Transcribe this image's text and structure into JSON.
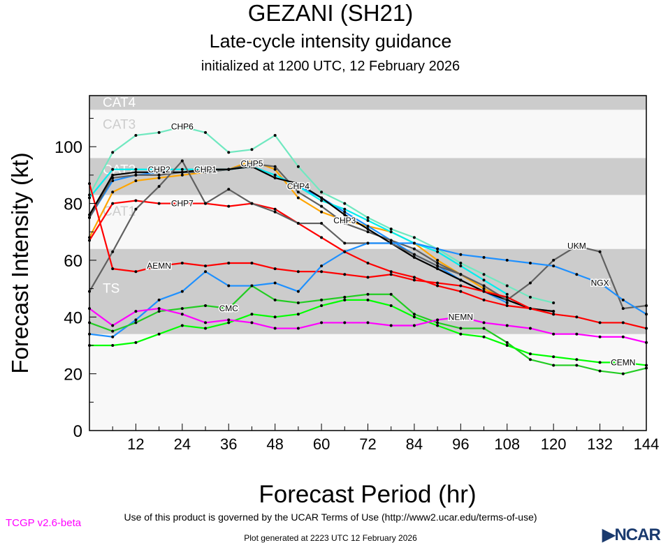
{
  "header": {
    "title": "GEZANI (SH21)",
    "subtitle": "Late-cycle intensity guidance",
    "init": "initialized at 1200 UTC, 12 February 2026"
  },
  "footer": {
    "terms": "Use of this product is governed by the UCAR Terms of Use (http://www2.ucar.edu/terms-of-use)",
    "version": "TCGP v2.6-beta",
    "generated": "Plot generated at 2223 UTC   12 February 2026",
    "logo": "NCAR"
  },
  "chart_data": {
    "type": "line",
    "xlabel": "Forecast Period (hr)",
    "ylabel": "Forecast Intensity (kt)",
    "xlim": [
      0,
      144
    ],
    "ylim": [
      0,
      118
    ],
    "xticks": [
      12,
      24,
      36,
      48,
      60,
      72,
      84,
      96,
      108,
      120,
      132,
      144
    ],
    "yticks": [
      0,
      20,
      40,
      60,
      80,
      100
    ],
    "bands": [
      {
        "label": "TS",
        "from": 34,
        "to": 64,
        "shade": "#cccccc",
        "text": "#ffffff"
      },
      {
        "label": "CAT1",
        "from": 64,
        "to": 83,
        "shade": "#f8f8f8",
        "text": "#cccccc"
      },
      {
        "label": "CAT2",
        "from": 83,
        "to": 96,
        "shade": "#cccccc",
        "text": "#ffffff"
      },
      {
        "label": "CAT3",
        "from": 96,
        "to": 113,
        "shade": "#f8f8f8",
        "text": "#cccccc"
      },
      {
        "label": "CAT4",
        "from": 113,
        "to": 118,
        "shade": "#cccccc",
        "text": "#ffffff"
      }
    ],
    "below_band_shade": "#f8f8f8",
    "x_step_hours": 6,
    "series": [
      {
        "name": "CHP6",
        "color": "#70e8c0",
        "values": [
          83,
          98,
          104,
          105,
          107,
          105,
          98,
          99,
          104,
          93,
          84,
          80,
          75,
          71,
          68,
          64,
          59,
          55,
          51,
          47,
          45
        ]
      },
      {
        "name": "CHP3",
        "color": "#ffa500",
        "values": [
          68,
          84,
          88,
          89,
          90,
          91,
          92,
          95,
          92,
          82,
          77,
          74,
          72,
          70,
          66,
          60,
          55,
          50,
          46
        ]
      },
      {
        "name": "CHP4",
        "color": "#1e90ff",
        "values": [
          75,
          88,
          90,
          91,
          91,
          91,
          92,
          93,
          90,
          86,
          82,
          77,
          72,
          67,
          62,
          58,
          53,
          49,
          45
        ]
      },
      {
        "name": "CHP5",
        "color": "#606060",
        "values": [
          75,
          89,
          90,
          90,
          91,
          91,
          92,
          94,
          93,
          84,
          79,
          73,
          70,
          67,
          64,
          59,
          55,
          51,
          46,
          43,
          42
        ]
      },
      {
        "name": "CHP2",
        "color": "#00eeee",
        "values": [
          82,
          92,
          92,
          92,
          92,
          92,
          92,
          93,
          90,
          86,
          81,
          78,
          74,
          70,
          66,
          63,
          58,
          53,
          48
        ]
      },
      {
        "name": "CHP1",
        "color": "#000000",
        "values": [
          76,
          90,
          91,
          91,
          91,
          92,
          92,
          93,
          89,
          87,
          82,
          76,
          71,
          66,
          61,
          57,
          53,
          49,
          46,
          43,
          42
        ]
      },
      {
        "name": "CHP7",
        "color": "#ff0000",
        "values": [
          67,
          80,
          81,
          80,
          80,
          80,
          79,
          80,
          78,
          73,
          68,
          63,
          59,
          56,
          54,
          51,
          49,
          46,
          44,
          43,
          41
        ]
      },
      {
        "name": "UKM",
        "color": "#606060",
        "values": [
          49,
          63,
          78,
          86,
          95,
          80,
          85,
          80,
          77,
          73,
          73,
          66,
          66,
          66,
          62,
          58,
          55,
          51,
          46,
          52,
          60,
          65,
          63,
          43,
          44
        ]
      },
      {
        "name": "AEMN",
        "color": "#ff0000",
        "values": [
          87,
          57,
          56,
          58,
          59,
          58,
          59,
          59,
          57,
          56,
          56,
          55,
          54,
          55,
          53,
          52,
          51,
          49,
          47,
          43,
          41,
          40,
          38,
          38,
          36
        ]
      },
      {
        "name": "NGX",
        "color": "#1e90ff",
        "values": [
          34,
          33,
          39,
          46,
          49,
          56,
          51,
          51,
          52,
          49,
          58,
          63,
          66,
          66,
          66,
          64,
          62,
          61,
          60,
          59,
          58,
          55,
          52,
          46,
          41
        ]
      },
      {
        "name": "CMC",
        "color": "#22cc22",
        "values": [
          38,
          35,
          38,
          42,
          43,
          44,
          43,
          51,
          46,
          45,
          46,
          47,
          48,
          48,
          41,
          38,
          36,
          36,
          31,
          25,
          23,
          23,
          21,
          20,
          22
        ]
      },
      {
        "name": "CEMN",
        "color": "#00ff00",
        "values": [
          30,
          30,
          31,
          34,
          37,
          36,
          38,
          41,
          40,
          41,
          44,
          46,
          46,
          44,
          40,
          37,
          34,
          33,
          30,
          27,
          26,
          25,
          24,
          24,
          23
        ]
      },
      {
        "name": "NEMN",
        "color": "#ff00ff",
        "values": [
          43,
          37,
          42,
          43,
          41,
          38,
          39,
          38,
          36,
          36,
          38,
          38,
          38,
          37,
          37,
          39,
          40,
          38,
          37,
          36,
          34,
          34,
          33,
          33,
          31
        ]
      }
    ]
  }
}
